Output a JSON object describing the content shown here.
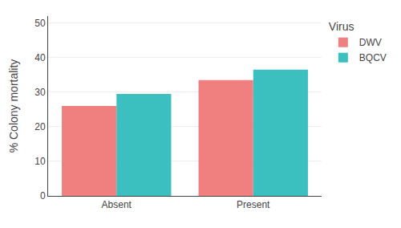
{
  "chart_data": {
    "type": "bar",
    "categories": [
      "Absent",
      "Present"
    ],
    "series": [
      {
        "name": "DWV",
        "color": "#F08080",
        "values": [
          26.0,
          33.5
        ]
      },
      {
        "name": "BQCV",
        "color": "#3CBFBF",
        "values": [
          29.5,
          36.5
        ]
      }
    ],
    "ylabel": "% Colony mortality",
    "ylim": [
      0,
      52
    ],
    "yticks": [
      0,
      10,
      20,
      30,
      40,
      50
    ],
    "grid": true,
    "legend": "upper right",
    "legend_title": "Virus"
  }
}
